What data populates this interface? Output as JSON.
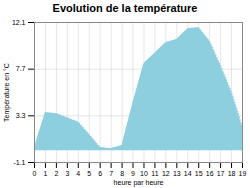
{
  "chart_data": {
    "type": "area",
    "title": "Evolution de la température",
    "xlabel": "heure par heure",
    "ylabel": "Température en °C",
    "x": [
      0,
      1,
      2,
      3,
      4,
      5,
      6,
      7,
      8,
      9,
      10,
      11,
      12,
      13,
      14,
      15,
      16,
      17,
      18,
      19
    ],
    "values": [
      0.3,
      3.6,
      3.5,
      3.1,
      2.7,
      1.5,
      0.3,
      0.2,
      0.5,
      4.5,
      8.2,
      9.2,
      10.2,
      10.5,
      11.5,
      11.6,
      10.3,
      8.0,
      5.5,
      2.2
    ],
    "xlim": [
      0,
      19
    ],
    "xticks": [
      0,
      1,
      2,
      3,
      4,
      5,
      6,
      7,
      8,
      9,
      10,
      11,
      12,
      13,
      14,
      15,
      16,
      17,
      18,
      19
    ],
    "ylim": [
      -1.1,
      12.1
    ],
    "yticks": [
      -1.1,
      3.3,
      7.7,
      12.1
    ],
    "color": "#8ecfdf",
    "line_style": "dotted",
    "grid": true
  }
}
